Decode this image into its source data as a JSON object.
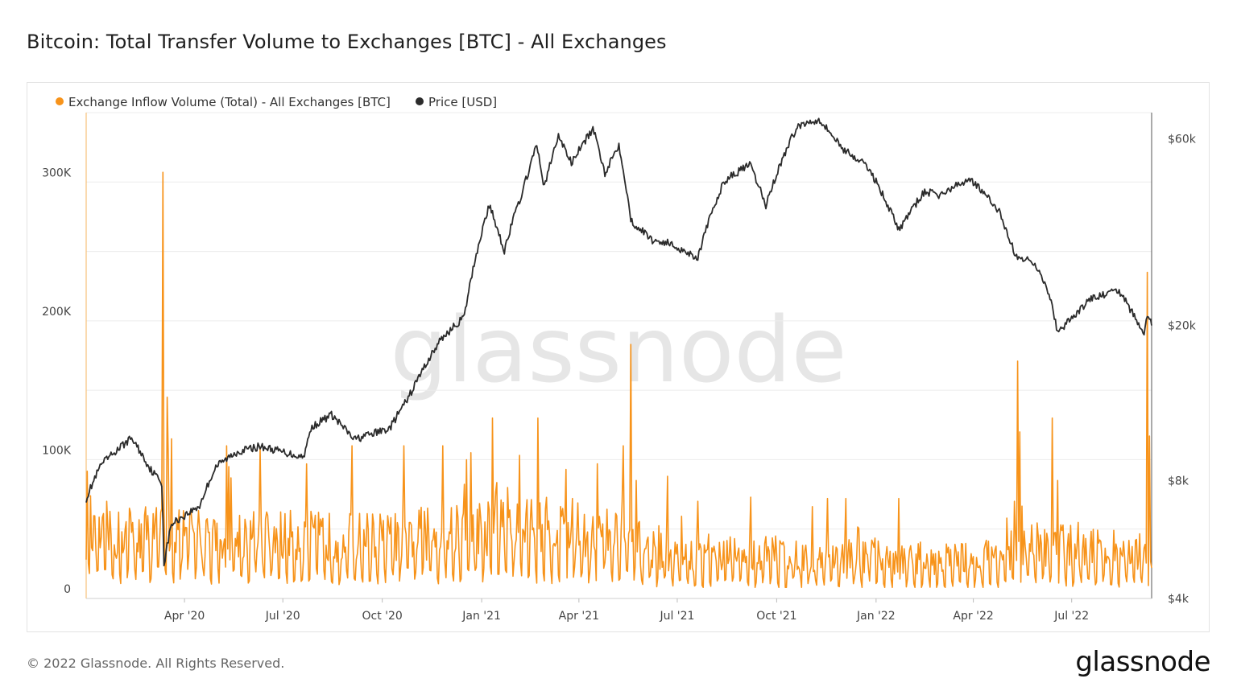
{
  "title": "Bitcoin: Total Transfer Volume to Exchanges [BTC] - All Exchanges",
  "footer": "© 2022 Glassnode. All Rights Reserved.",
  "brand": "glassnode",
  "watermark": "glassnode",
  "colors": {
    "inflow": "#f7931a",
    "price": "#2b2b2b",
    "grid": "#ececec",
    "watermark": "#e6e6e6"
  },
  "chart_data": {
    "type": "line",
    "legend": "top-left",
    "grid": true,
    "x_range": [
      "2020-01-01",
      "2022-09-13"
    ],
    "x_ticks": [
      {
        "date": "2020-04-01",
        "label": "Apr '20"
      },
      {
        "date": "2020-07-01",
        "label": "Jul '20"
      },
      {
        "date": "2020-10-01",
        "label": "Oct '20"
      },
      {
        "date": "2021-01-01",
        "label": "Jan '21"
      },
      {
        "date": "2021-04-01",
        "label": "Apr '21"
      },
      {
        "date": "2021-07-01",
        "label": "Jul '21"
      },
      {
        "date": "2021-10-01",
        "label": "Oct '21"
      },
      {
        "date": "2022-01-01",
        "label": "Jan '22"
      },
      {
        "date": "2022-04-01",
        "label": "Apr '22"
      },
      {
        "date": "2022-07-01",
        "label": "Jul '22"
      }
    ],
    "left_axis": {
      "ylim": [
        0,
        350000
      ],
      "ticks": [
        {
          "value": 0,
          "label": "0"
        },
        {
          "value": 100000,
          "label": "100K"
        },
        {
          "value": 200000,
          "label": "200K"
        },
        {
          "value": 300000,
          "label": "300K"
        }
      ]
    },
    "right_axis": {
      "scale": "log",
      "ylim": [
        4000,
        70000
      ],
      "ticks": [
        {
          "value": 4000,
          "label": "$4k"
        },
        {
          "value": 8000,
          "label": "$8k"
        },
        {
          "value": 20000,
          "label": "$20k"
        },
        {
          "value": 60000,
          "label": "$60k"
        }
      ]
    },
    "series": [
      {
        "name": "Exchange Inflow Volume (Total) - All Exchanges [BTC]",
        "axis": "left",
        "baseline": [
          [
            "2020-01-01",
            38000
          ],
          [
            "2020-03-01",
            45000
          ],
          [
            "2020-06-01",
            42000
          ],
          [
            "2020-09-01",
            40000
          ],
          [
            "2020-12-01",
            43000
          ],
          [
            "2021-02-01",
            50000
          ],
          [
            "2021-05-01",
            42000
          ],
          [
            "2021-07-01",
            28000
          ],
          [
            "2021-10-01",
            30000
          ],
          [
            "2022-01-01",
            27000
          ],
          [
            "2022-04-01",
            26000
          ],
          [
            "2022-06-01",
            36000
          ],
          [
            "2022-09-13",
            30000
          ]
        ],
        "spikes": [
          [
            "2020-01-05",
            74000
          ],
          [
            "2020-01-20",
            70000
          ],
          [
            "2020-02-10",
            65000
          ],
          [
            "2020-03-12",
            307000
          ],
          [
            "2020-03-16",
            145000
          ],
          [
            "2020-03-20",
            115000
          ],
          [
            "2020-05-10",
            110000
          ],
          [
            "2020-05-12",
            95000
          ],
          [
            "2020-06-10",
            108000
          ],
          [
            "2020-09-03",
            110000
          ],
          [
            "2020-10-21",
            110000
          ],
          [
            "2020-11-26",
            110000
          ],
          [
            "2020-12-22",
            105000
          ],
          [
            "2021-01-11",
            130000
          ],
          [
            "2021-02-22",
            130000
          ],
          [
            "2021-03-20",
            93000
          ],
          [
            "2021-04-18",
            97000
          ],
          [
            "2021-05-12",
            110000
          ],
          [
            "2021-05-19",
            183000
          ],
          [
            "2021-05-24",
            85000
          ],
          [
            "2021-06-22",
            88000
          ],
          [
            "2021-07-20",
            70000
          ],
          [
            "2021-09-07",
            73000
          ],
          [
            "2021-11-17",
            72000
          ],
          [
            "2021-12-04",
            72000
          ],
          [
            "2022-01-22",
            72000
          ],
          [
            "2022-05-09",
            70000
          ],
          [
            "2022-05-12",
            171000
          ],
          [
            "2022-05-14",
            120000
          ],
          [
            "2022-06-13",
            130000
          ],
          [
            "2022-06-18",
            85000
          ],
          [
            "2022-09-09",
            235000
          ],
          [
            "2022-09-11",
            117000
          ]
        ]
      },
      {
        "name": "Price [USD]",
        "axis": "right",
        "points": [
          [
            "2020-01-01",
            7200
          ],
          [
            "2020-01-15",
            8800
          ],
          [
            "2020-02-12",
            10300
          ],
          [
            "2020-02-29",
            8600
          ],
          [
            "2020-03-11",
            7900
          ],
          [
            "2020-03-13",
            4900
          ],
          [
            "2020-03-20",
            6200
          ],
          [
            "2020-04-15",
            6900
          ],
          [
            "2020-04-30",
            8700
          ],
          [
            "2020-05-20",
            9500
          ],
          [
            "2020-06-10",
            9800
          ],
          [
            "2020-07-20",
            9200
          ],
          [
            "2020-07-28",
            11000
          ],
          [
            "2020-08-15",
            11800
          ],
          [
            "2020-09-05",
            10200
          ],
          [
            "2020-10-08",
            10900
          ],
          [
            "2020-10-25",
            13000
          ],
          [
            "2020-11-25",
            18500
          ],
          [
            "2020-12-16",
            21000
          ],
          [
            "2021-01-08",
            40500
          ],
          [
            "2021-01-22",
            31000
          ],
          [
            "2021-02-08",
            44000
          ],
          [
            "2021-02-21",
            57500
          ],
          [
            "2021-02-28",
            45000
          ],
          [
            "2021-03-13",
            61000
          ],
          [
            "2021-03-25",
            52000
          ],
          [
            "2021-04-14",
            63500
          ],
          [
            "2021-04-25",
            49000
          ],
          [
            "2021-05-08",
            58000
          ],
          [
            "2021-05-19",
            37000
          ],
          [
            "2021-06-08",
            33000
          ],
          [
            "2021-06-22",
            32500
          ],
          [
            "2021-07-20",
            29800
          ],
          [
            "2021-08-14",
            47000
          ],
          [
            "2021-09-06",
            51500
          ],
          [
            "2021-09-21",
            40500
          ],
          [
            "2021-10-20",
            64500
          ],
          [
            "2021-11-09",
            67500
          ],
          [
            "2021-11-30",
            57000
          ],
          [
            "2021-12-25",
            50500
          ],
          [
            "2022-01-22",
            35000
          ],
          [
            "2022-02-15",
            44000
          ],
          [
            "2022-03-01",
            43000
          ],
          [
            "2022-03-29",
            47500
          ],
          [
            "2022-04-25",
            39000
          ],
          [
            "2022-05-10",
            30000
          ],
          [
            "2022-05-28",
            29000
          ],
          [
            "2022-06-13",
            22500
          ],
          [
            "2022-06-18",
            19000
          ],
          [
            "2022-07-20",
            23500
          ],
          [
            "2022-08-14",
            24500
          ],
          [
            "2022-09-06",
            18800
          ],
          [
            "2022-09-09",
            21500
          ],
          [
            "2022-09-13",
            20200
          ]
        ]
      }
    ]
  }
}
